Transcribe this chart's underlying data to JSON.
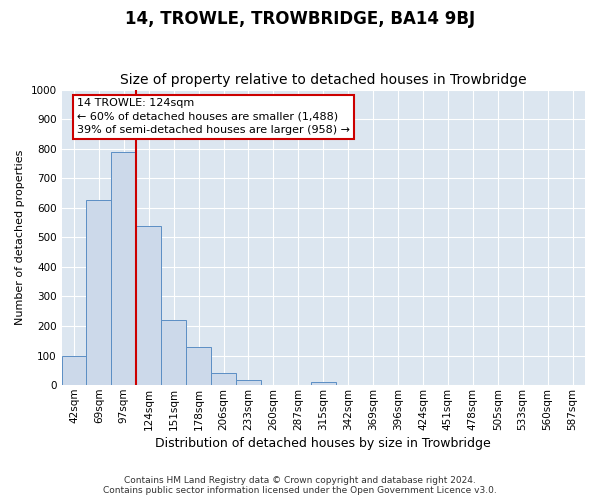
{
  "title": "14, TROWLE, TROWBRIDGE, BA14 9BJ",
  "subtitle": "Size of property relative to detached houses in Trowbridge",
  "xlabel": "Distribution of detached houses by size in Trowbridge",
  "ylabel": "Number of detached properties",
  "bar_labels": [
    "42sqm",
    "69sqm",
    "97sqm",
    "124sqm",
    "151sqm",
    "178sqm",
    "206sqm",
    "233sqm",
    "260sqm",
    "287sqm",
    "315sqm",
    "342sqm",
    "369sqm",
    "396sqm",
    "424sqm",
    "451sqm",
    "478sqm",
    "505sqm",
    "533sqm",
    "560sqm",
    "587sqm"
  ],
  "bar_values": [
    100,
    625,
    790,
    540,
    220,
    130,
    42,
    16,
    0,
    0,
    10,
    0,
    0,
    0,
    0,
    0,
    0,
    0,
    0,
    0,
    0
  ],
  "bar_color": "#ccd9ea",
  "bar_edge_color": "#5b8ec4",
  "highlight_index": 3,
  "vline_color": "#cc0000",
  "annotation_text": "14 TROWLE: 124sqm\n← 60% of detached houses are smaller (1,488)\n39% of semi-detached houses are larger (958) →",
  "annotation_box_color": "#cc0000",
  "ylim": [
    0,
    1000
  ],
  "yticks": [
    0,
    100,
    200,
    300,
    400,
    500,
    600,
    700,
    800,
    900,
    1000
  ],
  "footer_line1": "Contains HM Land Registry data © Crown copyright and database right 2024.",
  "footer_line2": "Contains public sector information licensed under the Open Government Licence v3.0.",
  "bg_color": "#dce6f0",
  "grid_color": "#ffffff",
  "title_fontsize": 12,
  "subtitle_fontsize": 10,
  "ylabel_fontsize": 8,
  "xlabel_fontsize": 9,
  "tick_fontsize": 7.5,
  "footer_fontsize": 6.5,
  "annotation_fontsize": 8
}
